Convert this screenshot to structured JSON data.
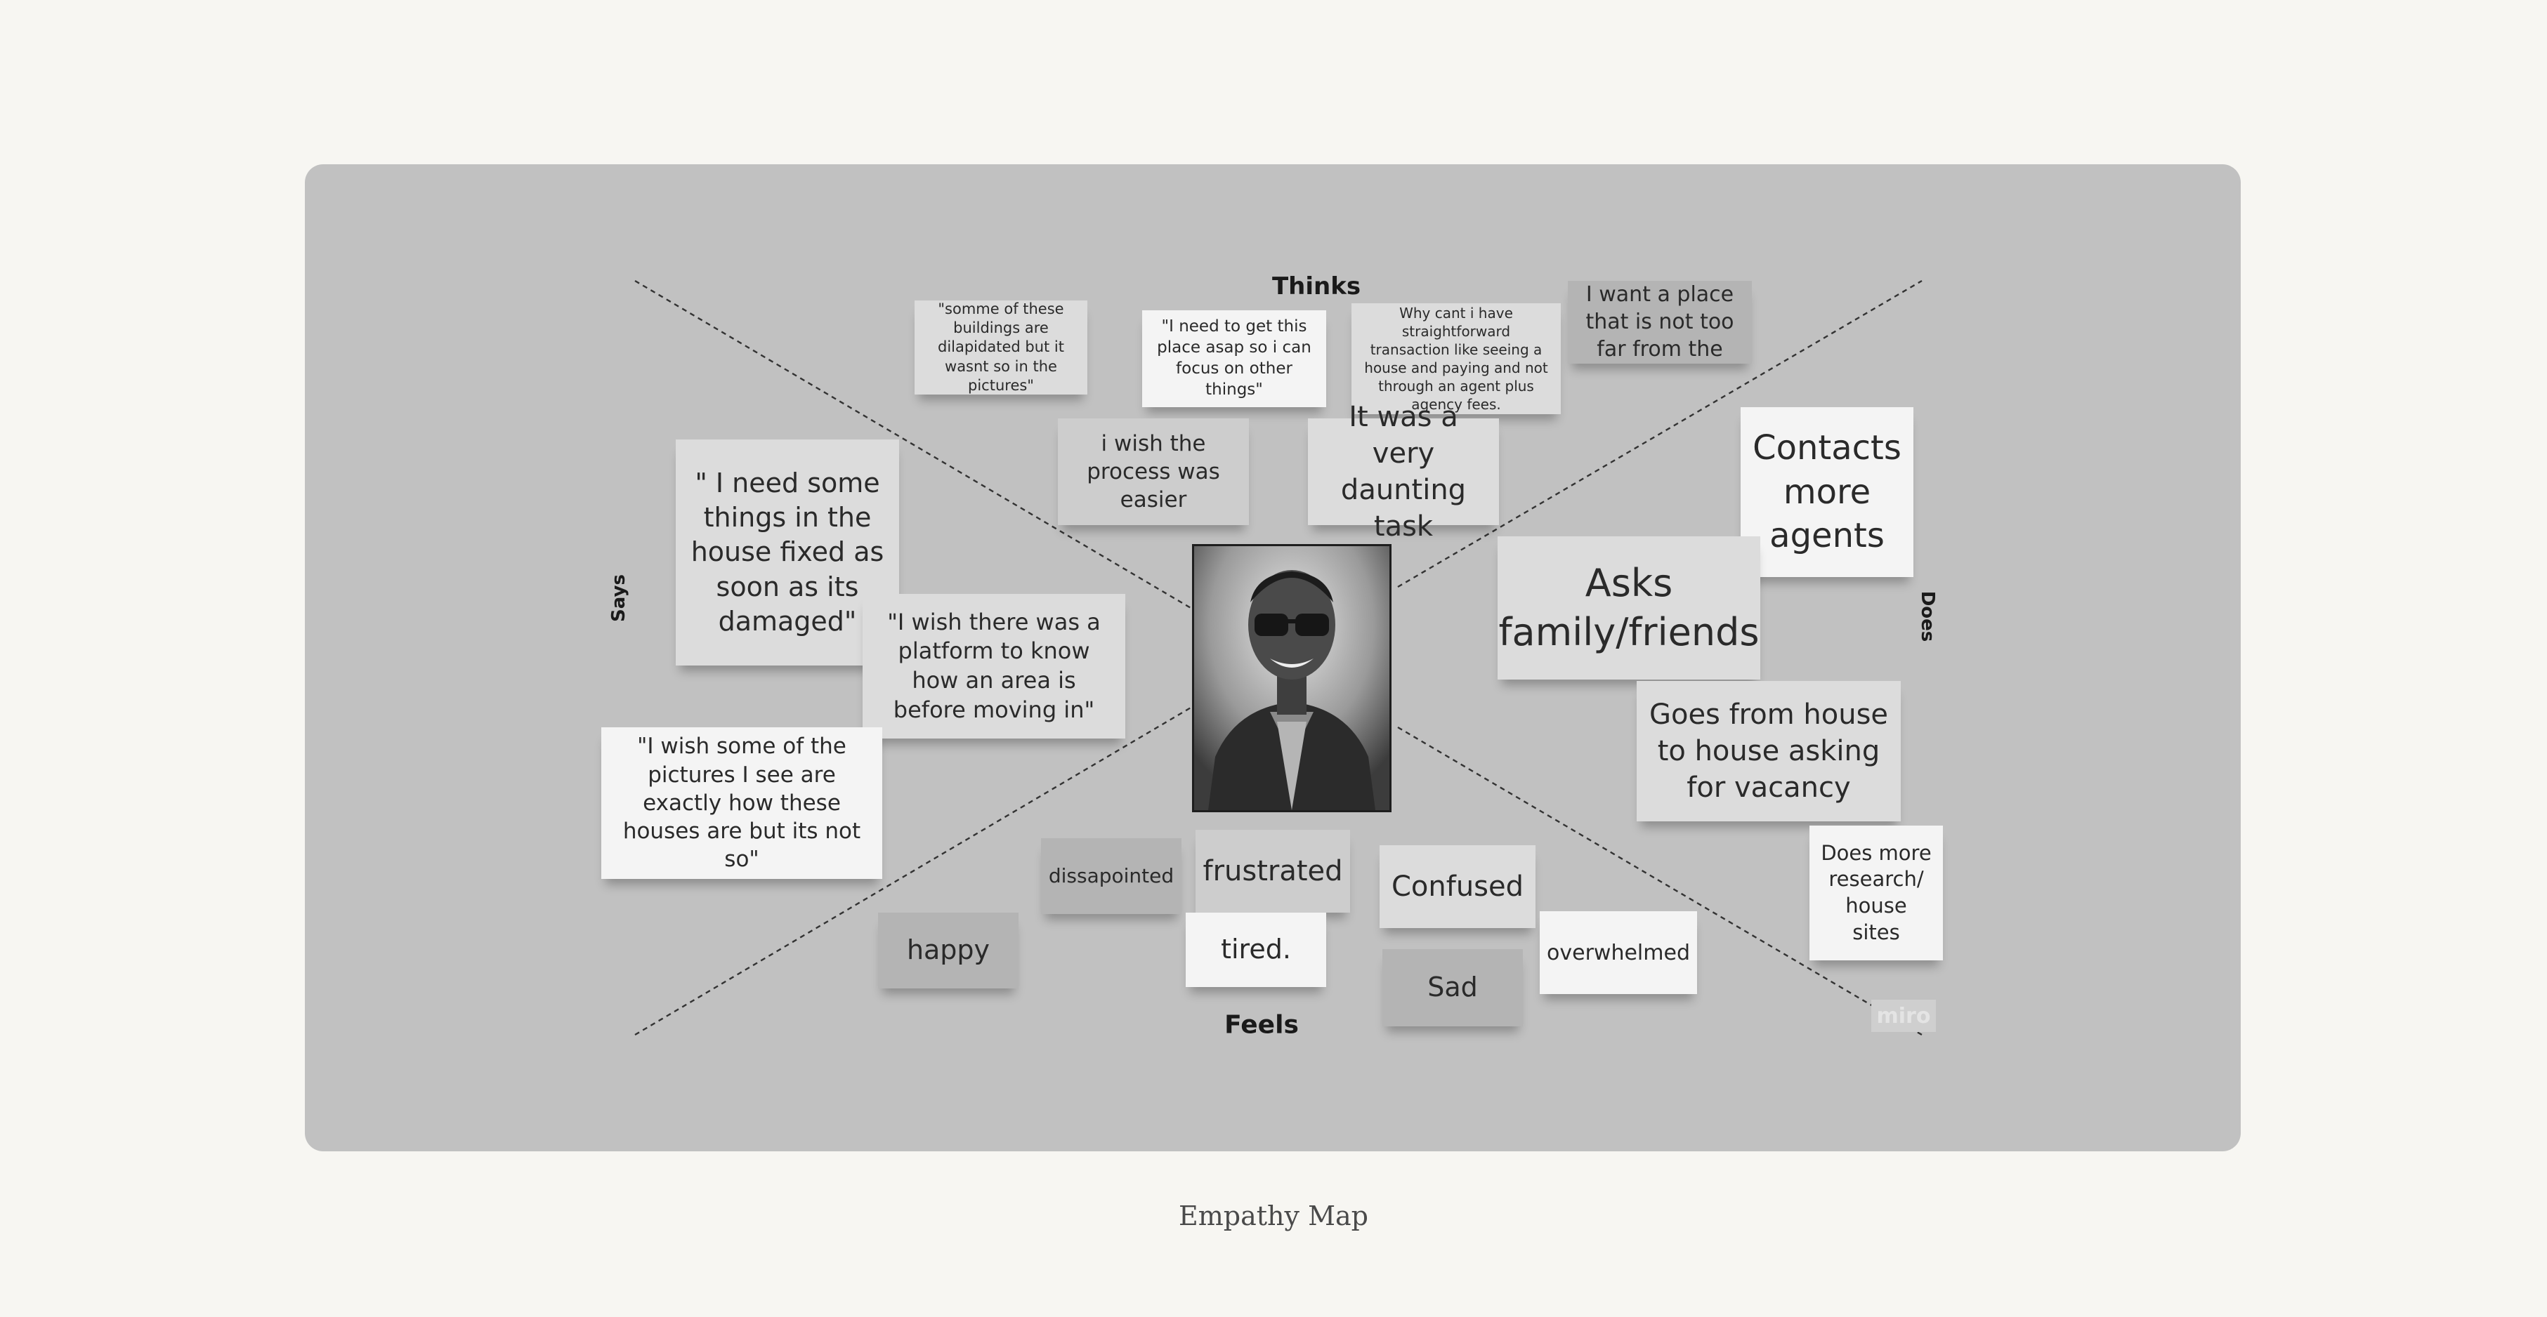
{
  "quadrants": {
    "thinks": "Thinks",
    "says": "Says",
    "does": "Does",
    "feels": "Feels"
  },
  "notes": {
    "buildings_dilapidated": "\"somme of these buildings are dilapidated but it wasnt so in the pictures\"",
    "get_place_asap": "\"I need to get this place asap so i can focus on other things\"",
    "straightforward_transaction": "Why cant i have straightforward transaction like seeing a house and paying and not through an agent plus agency fees.",
    "place_not_far": "I want a place that is not too far from the road.",
    "process_easier": "i wish the process was easier",
    "daunting_task": "It was a very daunting task",
    "things_fixed": "\" I need some things in the house fixed as soon as its damaged\"",
    "platform_area": "\"I wish there was a platform to know how an area is before moving in\"",
    "pictures_exact": "\"I wish some of the pictures I see are exactly how these houses are but its not so\"",
    "contacts_agents": "Contacts more agents",
    "asks_family": "Asks family/friends",
    "house_to_house": "Goes from house to house asking for vacancy",
    "more_research": "Does more research/ house sites",
    "dissapointed": "dissapointed",
    "frustrated": "frustrated",
    "confused": "Confused",
    "happy": "happy",
    "tired": "tired.",
    "sad": "Sad",
    "overwhelmed": "overwhelmed"
  },
  "watermark": "miro",
  "caption": "Empathy Map"
}
